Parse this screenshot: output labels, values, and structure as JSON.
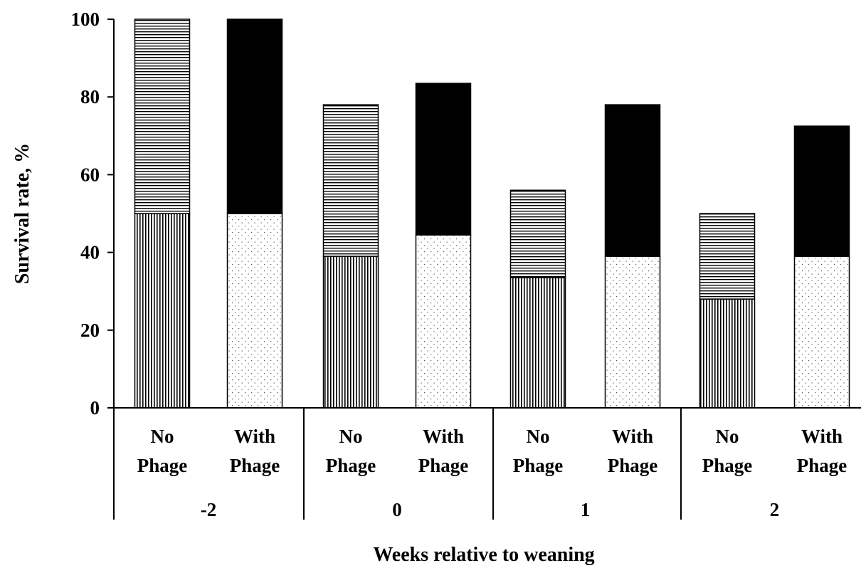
{
  "chart_data": {
    "type": "stacked-bar",
    "ylabel": "Survival rate, %",
    "xlabel": "Weeks relative to weaning",
    "ylim": [
      0,
      100
    ],
    "yticks": [
      0,
      20,
      40,
      60,
      80,
      100
    ],
    "grid": false,
    "legend": "none",
    "groups": [
      {
        "label": "-2",
        "bars": [
          {
            "line1": "No",
            "line2": "Phage",
            "phage": false,
            "lower": 50,
            "total": 100
          },
          {
            "line1": "With",
            "line2": "Phage",
            "phage": true,
            "lower": 50,
            "total": 100
          }
        ]
      },
      {
        "label": "0",
        "bars": [
          {
            "line1": "No",
            "line2": "Phage",
            "phage": false,
            "lower": 39,
            "total": 78
          },
          {
            "line1": "With",
            "line2": "Phage",
            "phage": true,
            "lower": 44.5,
            "total": 83.5
          }
        ]
      },
      {
        "label": "1",
        "bars": [
          {
            "line1": "No",
            "line2": "Phage",
            "phage": false,
            "lower": 33.5,
            "total": 56
          },
          {
            "line1": "With",
            "line2": "Phage",
            "phage": true,
            "lower": 39,
            "total": 78
          }
        ]
      },
      {
        "label": "2",
        "bars": [
          {
            "line1": "No",
            "line2": "Phage",
            "phage": false,
            "lower": 28,
            "total": 50
          },
          {
            "line1": "With",
            "line2": "Phage",
            "phage": true,
            "lower": 39,
            "total": 72.5
          }
        ]
      }
    ],
    "colors": {
      "with_phage_upper": "#000000",
      "edge": "#000000",
      "background": "#ffffff"
    }
  }
}
